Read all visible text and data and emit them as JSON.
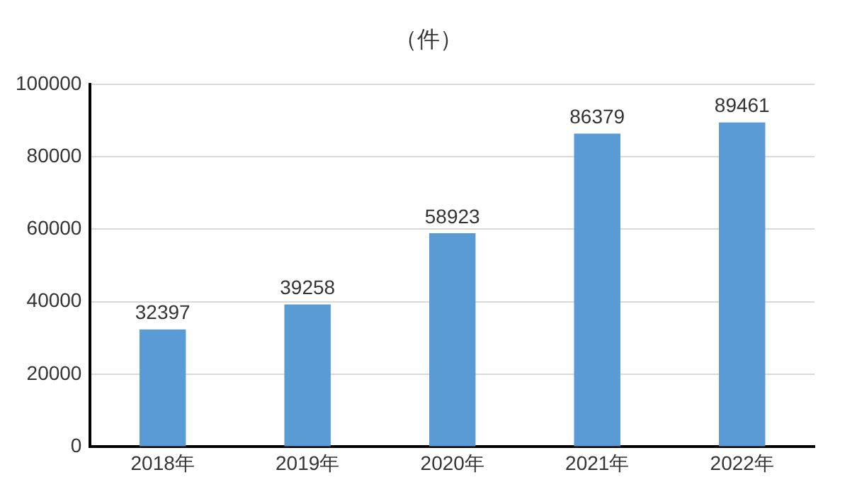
{
  "chart_data": {
    "type": "bar",
    "title": "（件）",
    "categories": [
      "2018年",
      "2019年",
      "2020年",
      "2021年",
      "2022年"
    ],
    "values": [
      32397,
      39258,
      58923,
      86379,
      89461
    ],
    "color": "#5b9bd5",
    "ylim": [
      0,
      100000
    ],
    "yticks": [
      0,
      20000,
      40000,
      60000,
      80000,
      100000
    ],
    "grid": "y",
    "data_labels": true
  }
}
